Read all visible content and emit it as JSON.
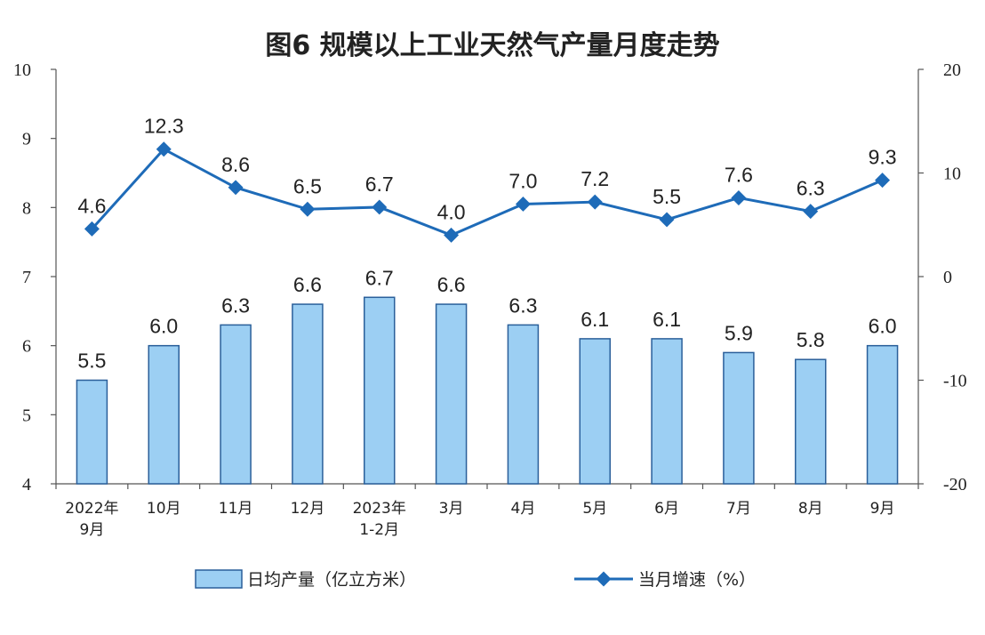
{
  "chart_data": {
    "type": "bar",
    "title": "图6  规模以上工业天然气产量月度走势",
    "categories": [
      [
        "2022年",
        "9月"
      ],
      [
        "10月"
      ],
      [
        "11月"
      ],
      [
        "12月"
      ],
      [
        "2023年",
        "1-2月"
      ],
      [
        "3月"
      ],
      [
        "4月"
      ],
      [
        "5月"
      ],
      [
        "6月"
      ],
      [
        "7月"
      ],
      [
        "8月"
      ],
      [
        "9月"
      ]
    ],
    "series": [
      {
        "name": "日均产量（亿立方米）",
        "type": "bar",
        "axis": "left",
        "color": "#9ccff3",
        "edge_color": "#2a5f9a",
        "values": [
          5.5,
          6.0,
          6.3,
          6.6,
          6.7,
          6.6,
          6.3,
          6.1,
          6.1,
          5.9,
          5.8,
          6.0
        ],
        "labels": [
          "5.5",
          "6.0",
          "6.3",
          "6.6",
          "6.7",
          "6.6",
          "6.3",
          "6.1",
          "6.1",
          "5.9",
          "5.8",
          "6.0"
        ]
      },
      {
        "name": "当月增速（%）",
        "type": "line",
        "axis": "right",
        "color": "#1e6bb8",
        "values": [
          4.6,
          12.3,
          8.6,
          6.5,
          6.7,
          4.0,
          7.0,
          7.2,
          5.5,
          7.6,
          6.3,
          9.3
        ],
        "labels": [
          "4.6",
          "12.3",
          "8.6",
          "6.5",
          "6.7",
          "4.0",
          "7.0",
          "7.2",
          "5.5",
          "7.6",
          "6.3",
          "9.3"
        ]
      }
    ],
    "y_left": {
      "ylim": [
        4,
        10
      ],
      "ticks": [
        "4",
        "5",
        "6",
        "7",
        "8",
        "9",
        "10"
      ]
    },
    "y_right": {
      "ylim": [
        -20,
        20
      ],
      "ticks": [
        "-20",
        "-10",
        "0",
        "10",
        "20"
      ]
    },
    "grid": false,
    "legend_position": "bottom"
  }
}
